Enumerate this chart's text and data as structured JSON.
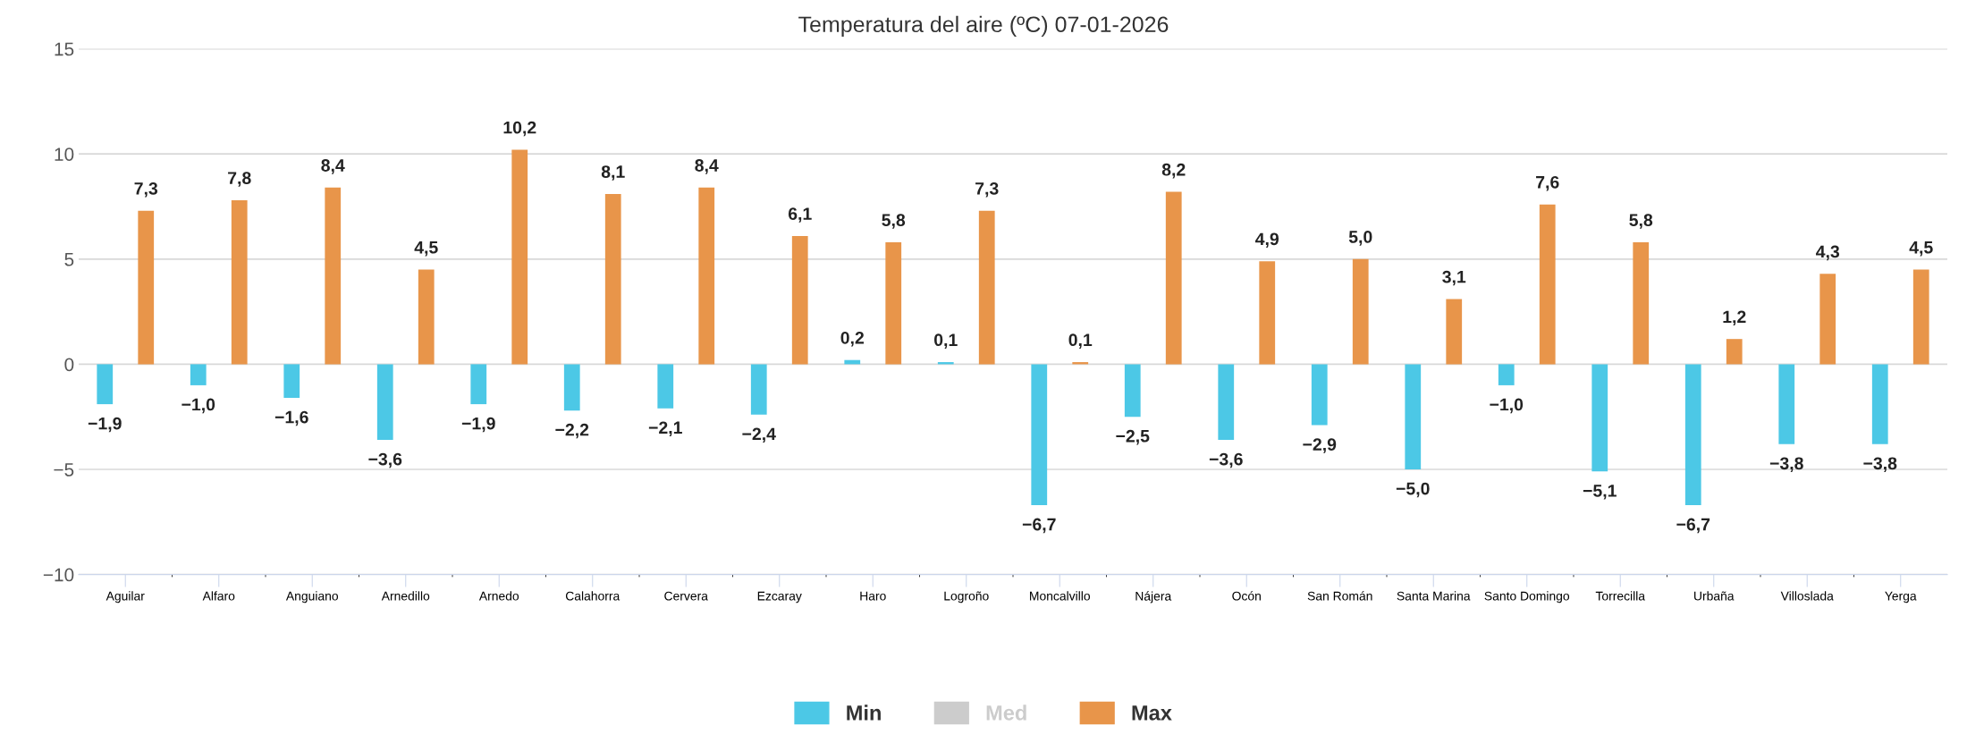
{
  "chart_data": {
    "type": "bar",
    "title": "Temperatura del aire (ºC) 07-01-2026",
    "categories": [
      "Aguilar",
      "Alfaro",
      "Anguiano",
      "Arnedillo",
      "Arnedo",
      "Calahorra",
      "Cervera",
      "Ezcaray",
      "Haro",
      "Logroño",
      "Moncalvillo",
      "Nájera",
      "Ocón",
      "San Román",
      "Santa Marina",
      "Santo Domingo",
      "Torrecilla",
      "Urbaña",
      "Villoslada",
      "Yerga"
    ],
    "series": [
      {
        "name": "Min",
        "color": "#4cc8e6",
        "values": [
          -1.9,
          -1.0,
          -1.6,
          -3.6,
          -1.9,
          -2.2,
          -2.1,
          -2.4,
          0.2,
          0.1,
          -6.7,
          -2.5,
          -3.6,
          -2.9,
          -5.0,
          -1.0,
          -5.1,
          -6.7,
          -3.8,
          -3.8
        ],
        "value_labels": [
          "−1,9",
          "−1,0",
          "−1,6",
          "−3,6",
          "−1,9",
          "−2,2",
          "−2,1",
          "−2,4",
          "0,2",
          "0,1",
          "−6,7",
          "−2,5",
          "−3,6",
          "−2,9",
          "−5,0",
          "−1,0",
          "−5,1",
          "−6,7",
          "−3,8",
          "−3,8"
        ]
      },
      {
        "name": "Med",
        "color": "#cccccc",
        "values": [
          null,
          null,
          null,
          null,
          null,
          null,
          null,
          null,
          null,
          null,
          null,
          null,
          null,
          null,
          null,
          null,
          null,
          null,
          null,
          null
        ]
      },
      {
        "name": "Max",
        "color": "#e8954a",
        "values": [
          7.3,
          7.8,
          8.4,
          4.5,
          10.2,
          8.1,
          8.4,
          6.1,
          5.8,
          7.3,
          0.1,
          8.2,
          4.9,
          5.0,
          3.1,
          7.6,
          5.8,
          1.2,
          4.3,
          4.5
        ],
        "value_labels": [
          "7,3",
          "7,8",
          "8,4",
          "4,5",
          "10,2",
          "8,1",
          "8,4",
          "6,1",
          "5,8",
          "7,3",
          "0,1",
          "8,2",
          "4,9",
          "5,0",
          "3,1",
          "7,6",
          "5,8",
          "1,2",
          "4,3",
          "4,5"
        ]
      }
    ],
    "ylim": [
      -10,
      15
    ],
    "yticks": [
      {
        "value": -10,
        "label": "−10"
      },
      {
        "value": -5,
        "label": "−5"
      },
      0,
      5,
      10,
      15
    ],
    "grid": "y",
    "legend": "bottom"
  }
}
